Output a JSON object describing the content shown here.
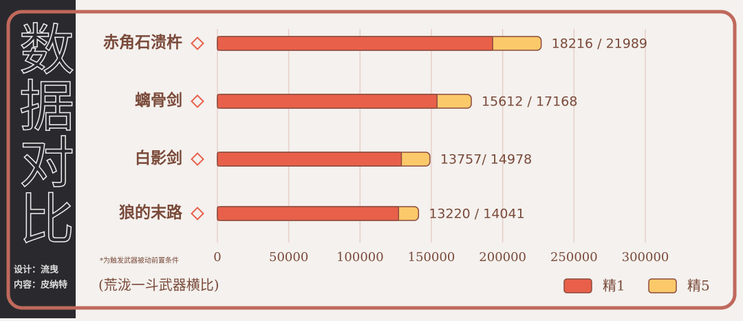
{
  "side_title": "数据对比",
  "credits": [
    "设计：流曳",
    "内容：皮纳特"
  ],
  "footnote": "*为触发武器被动前置条件",
  "caption": "(荒泷一斗武器横比)",
  "chart_data": {
    "type": "bar",
    "orientation": "horizontal",
    "categories": [
      "赤角石溃杵",
      "螭骨剑",
      "白影剑",
      "狼的末路"
    ],
    "bar_labels": [
      "18216 / 21989",
      "15612 / 17168",
      "13757/ 14978",
      "13220 / 14041"
    ],
    "series": [
      {
        "name": "精1",
        "color": "#e8604a",
        "values": [
          193000,
          154000,
          129000,
          127000
        ]
      },
      {
        "name": "精5",
        "color": "#fcc96a",
        "values": [
          227000,
          178000,
          149000,
          141000
        ]
      }
    ],
    "xlim": [
      0,
      300000
    ],
    "xticks": [
      0,
      50000,
      100000,
      150000,
      200000,
      250000,
      300000
    ],
    "grid": true,
    "legend": "bottom-right"
  }
}
